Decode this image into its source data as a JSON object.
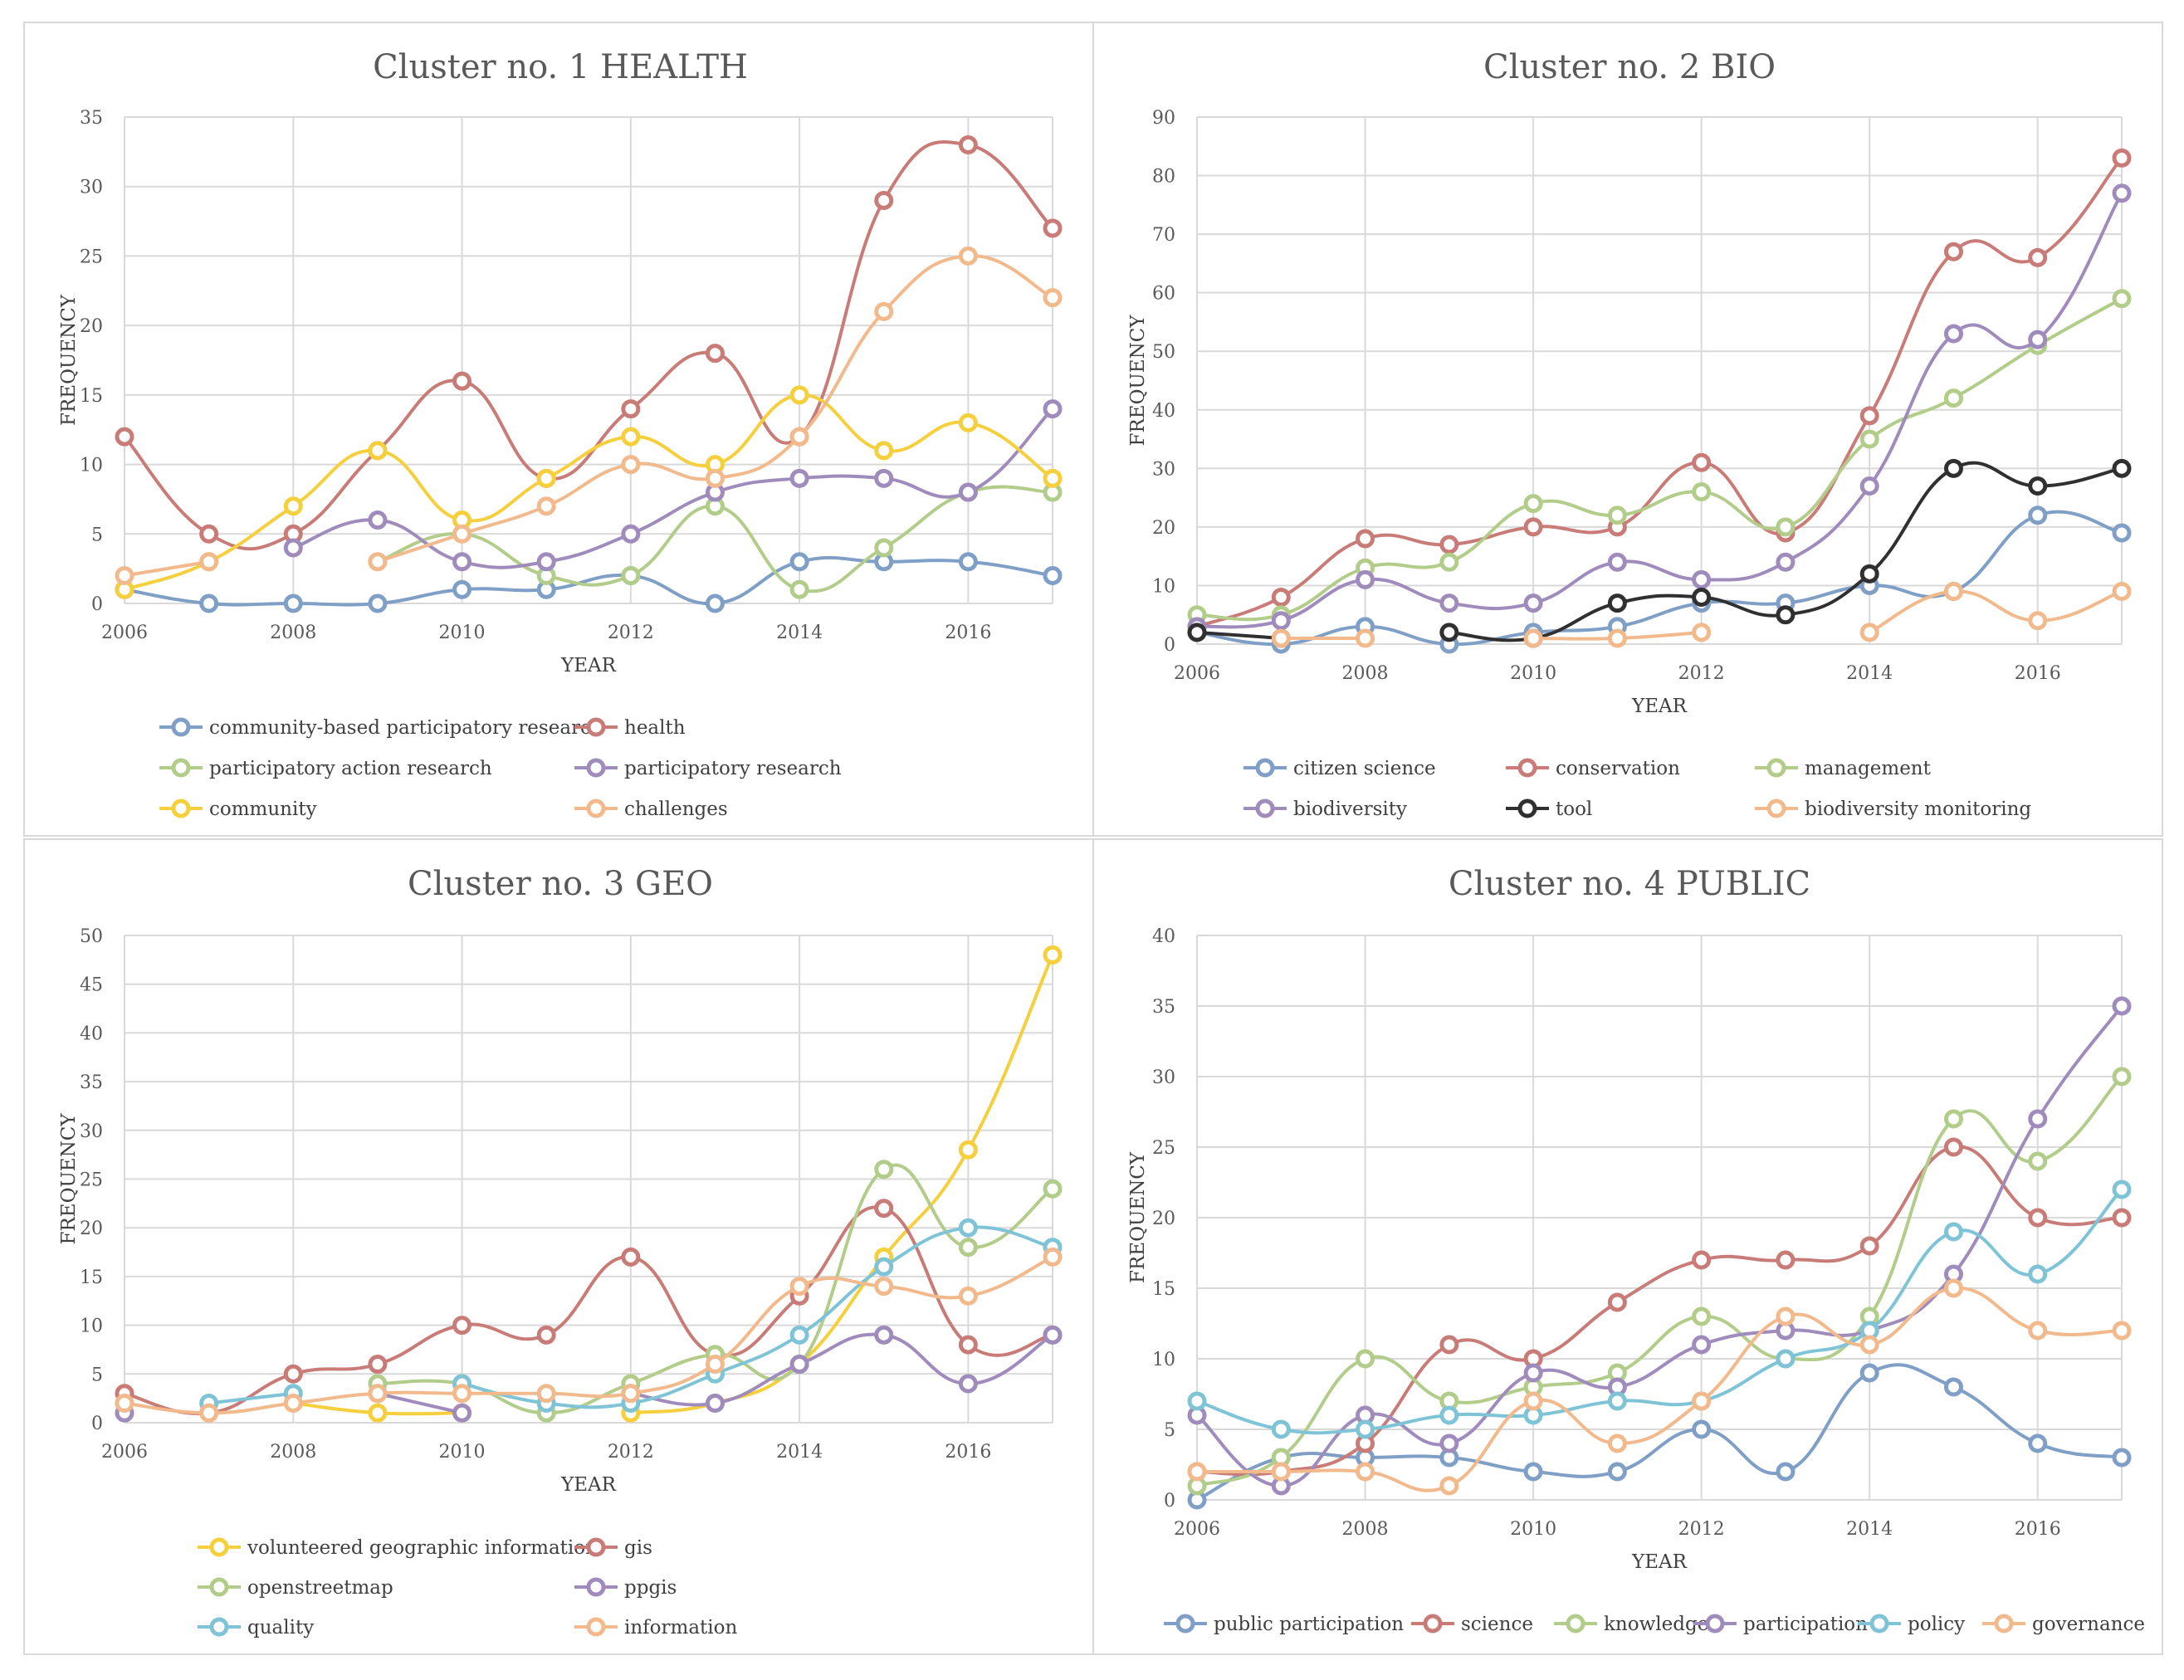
{
  "chart_data": [
    {
      "type": "line",
      "title": "Cluster no. 1 HEALTH",
      "xlabel": "YEAR",
      "ylabel": "FREQUENCY",
      "x": [
        2006,
        2007,
        2008,
        2009,
        2010,
        2011,
        2012,
        2013,
        2014,
        2015,
        2016,
        2017
      ],
      "xticks": [
        2006,
        2008,
        2010,
        2012,
        2014,
        2016
      ],
      "ylim": [
        0,
        35
      ],
      "yticks": [
        0,
        5,
        10,
        15,
        20,
        25,
        30,
        35
      ],
      "grid": true,
      "legend_position": "bottom",
      "legend_columns": 2,
      "series": [
        {
          "name": "community-based participatory research",
          "color": "#7f9fc6",
          "values": [
            1,
            0,
            0,
            0,
            1,
            1,
            2,
            0,
            3,
            3,
            3,
            2
          ]
        },
        {
          "name": "health",
          "color": "#c97b77",
          "values": [
            12,
            5,
            5,
            11,
            16,
            9,
            14,
            18,
            12,
            29,
            33,
            27
          ]
        },
        {
          "name": "participatory action research",
          "color": "#b2cc8a",
          "values": [
            null,
            null,
            null,
            3,
            5,
            2,
            2,
            7,
            1,
            4,
            8,
            8
          ]
        },
        {
          "name": "participatory research",
          "color": "#9f8cbc",
          "values": [
            null,
            null,
            4,
            6,
            3,
            3,
            5,
            8,
            9,
            9,
            8,
            14
          ]
        },
        {
          "name": "community",
          "color": "#f5cf3c",
          "values": [
            1,
            3,
            7,
            11,
            6,
            9,
            12,
            10,
            15,
            11,
            13,
            9
          ]
        },
        {
          "name": "challenges",
          "color": "#f2ba8c",
          "values": [
            2,
            3,
            null,
            3,
            5,
            7,
            10,
            9,
            12,
            21,
            25,
            22
          ]
        }
      ]
    },
    {
      "type": "line",
      "title": "Cluster no. 2 BIO",
      "xlabel": "YEAR",
      "ylabel": "FREQUENCY",
      "x": [
        2006,
        2007,
        2008,
        2009,
        2010,
        2011,
        2012,
        2013,
        2014,
        2015,
        2016,
        2017
      ],
      "xticks": [
        2006,
        2008,
        2010,
        2012,
        2014,
        2016
      ],
      "ylim": [
        0,
        90
      ],
      "yticks": [
        0,
        10,
        20,
        30,
        40,
        50,
        60,
        70,
        80,
        90
      ],
      "grid": true,
      "legend_position": "bottom",
      "legend_columns": 3,
      "series": [
        {
          "name": "citizen science",
          "color": "#7f9fc6",
          "values": [
            2,
            0,
            3,
            0,
            2,
            3,
            7,
            7,
            10,
            9,
            22,
            19
          ]
        },
        {
          "name": "conservation",
          "color": "#c97b77",
          "values": [
            3,
            8,
            18,
            17,
            20,
            20,
            31,
            19,
            39,
            67,
            66,
            83
          ]
        },
        {
          "name": "management",
          "color": "#b2cc8a",
          "values": [
            5,
            5,
            13,
            14,
            24,
            22,
            26,
            20,
            35,
            42,
            51,
            59
          ]
        },
        {
          "name": "biodiversity",
          "color": "#9f8cbc",
          "values": [
            3,
            4,
            11,
            7,
            7,
            14,
            11,
            14,
            27,
            53,
            52,
            77
          ]
        },
        {
          "name": "tool",
          "color": "#303030",
          "values": [
            2,
            1,
            null,
            2,
            1,
            7,
            8,
            5,
            12,
            30,
            27,
            30
          ]
        },
        {
          "name": "biodiversity monitoring",
          "color": "#f2ba8c",
          "values": [
            null,
            1,
            1,
            null,
            1,
            1,
            2,
            null,
            2,
            9,
            4,
            9
          ]
        }
      ]
    },
    {
      "type": "line",
      "title": "Cluster no. 3 GEO",
      "xlabel": "YEAR",
      "ylabel": "FREQUENCY",
      "x": [
        2006,
        2007,
        2008,
        2009,
        2010,
        2011,
        2012,
        2013,
        2014,
        2015,
        2016,
        2017
      ],
      "xticks": [
        2006,
        2008,
        2010,
        2012,
        2014,
        2016
      ],
      "ylim": [
        0,
        50
      ],
      "yticks": [
        0,
        5,
        10,
        15,
        20,
        25,
        30,
        35,
        40,
        45,
        50
      ],
      "grid": true,
      "legend_position": "bottom",
      "legend_columns": 2,
      "series": [
        {
          "name": "volunteered geographic information",
          "color": "#f5cf3c",
          "values": [
            2,
            null,
            2,
            1,
            1,
            null,
            1,
            2,
            6,
            17,
            28,
            48
          ]
        },
        {
          "name": "gis",
          "color": "#c97b77",
          "values": [
            3,
            1,
            5,
            6,
            10,
            9,
            17,
            7,
            13,
            22,
            8,
            9
          ]
        },
        {
          "name": "openstreetmap",
          "color": "#b2cc8a",
          "values": [
            null,
            null,
            null,
            4,
            4,
            1,
            4,
            7,
            6,
            26,
            18,
            24
          ]
        },
        {
          "name": "ppgis",
          "color": "#9f8cbc",
          "values": [
            1,
            null,
            null,
            3,
            1,
            null,
            3,
            2,
            6,
            9,
            4,
            9
          ]
        },
        {
          "name": "quality",
          "color": "#7ec4d6",
          "values": [
            null,
            2,
            3,
            null,
            4,
            2,
            2,
            5,
            9,
            16,
            20,
            18
          ]
        },
        {
          "name": "information",
          "color": "#f2ba8c",
          "values": [
            2,
            1,
            2,
            3,
            3,
            3,
            3,
            6,
            14,
            14,
            13,
            17
          ]
        }
      ]
    },
    {
      "type": "line",
      "title": "Cluster no. 4 PUBLIC",
      "xlabel": "YEAR",
      "ylabel": "FREQUENCY",
      "x": [
        2006,
        2007,
        2008,
        2009,
        2010,
        2011,
        2012,
        2013,
        2014,
        2015,
        2016,
        2017
      ],
      "xticks": [
        2006,
        2008,
        2010,
        2012,
        2014,
        2016
      ],
      "ylim": [
        0,
        40
      ],
      "yticks": [
        0,
        5,
        10,
        15,
        20,
        25,
        30,
        35,
        40
      ],
      "grid": true,
      "legend_position": "bottom",
      "legend_columns": 6,
      "series": [
        {
          "name": "public participation",
          "color": "#7f9fc6",
          "values": [
            0,
            3,
            3,
            3,
            2,
            2,
            5,
            2,
            9,
            8,
            4,
            3
          ]
        },
        {
          "name": "science",
          "color": "#c97b77",
          "values": [
            2,
            2,
            4,
            11,
            10,
            14,
            17,
            17,
            18,
            25,
            20,
            20
          ]
        },
        {
          "name": "knowledge",
          "color": "#b2cc8a",
          "values": [
            1,
            3,
            10,
            7,
            8,
            9,
            13,
            10,
            13,
            27,
            24,
            30
          ]
        },
        {
          "name": "participation",
          "color": "#9f8cbc",
          "values": [
            6,
            1,
            6,
            4,
            9,
            8,
            11,
            12,
            12,
            16,
            27,
            35
          ]
        },
        {
          "name": "policy",
          "color": "#7ec4d6",
          "values": [
            7,
            5,
            5,
            6,
            6,
            7,
            7,
            10,
            12,
            19,
            16,
            22
          ]
        },
        {
          "name": "governance",
          "color": "#f2ba8c",
          "values": [
            2,
            2,
            2,
            1,
            7,
            4,
            7,
            13,
            11,
            15,
            12,
            12
          ]
        }
      ]
    }
  ]
}
